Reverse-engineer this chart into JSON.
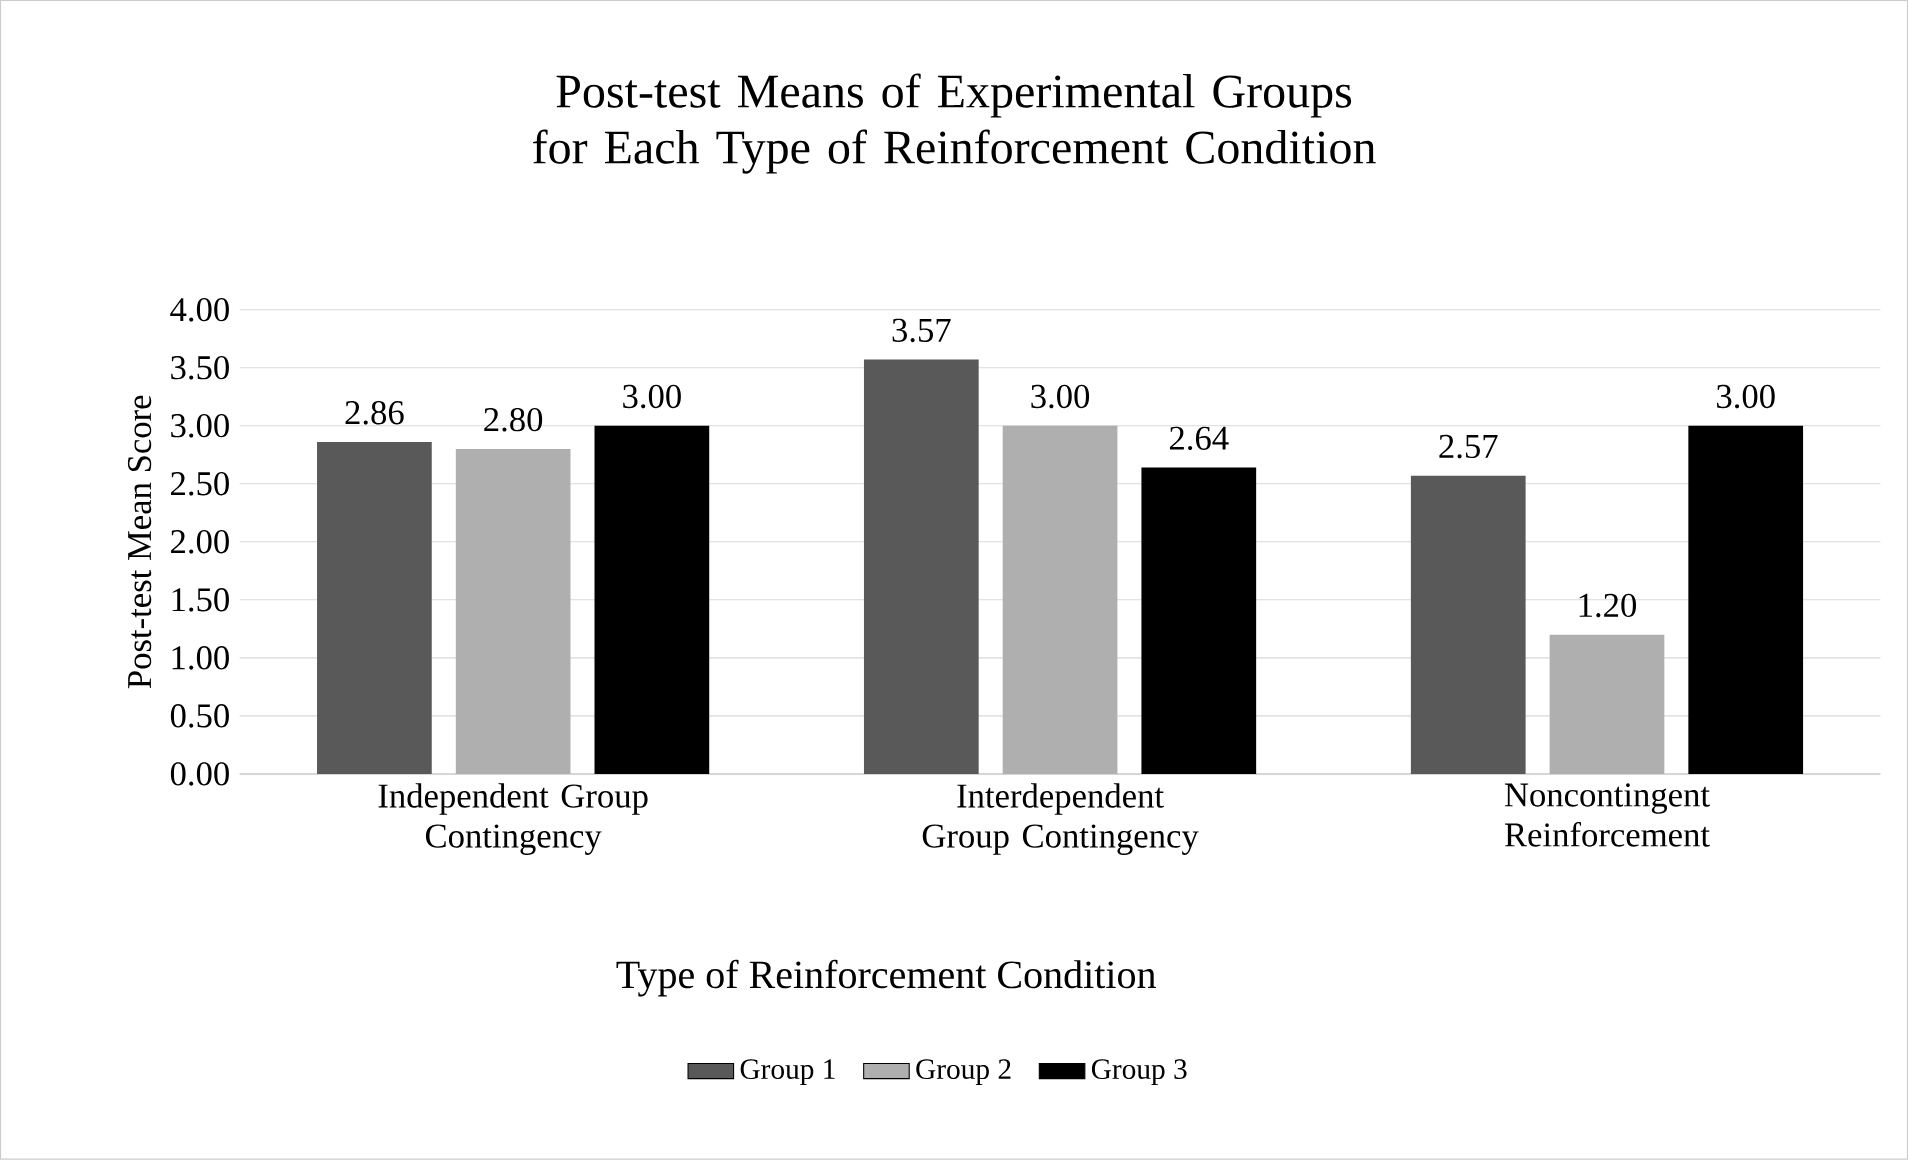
{
  "chart_data": {
    "type": "bar",
    "title": "Post-test Means of Experimental Groups for Each Type of Reinforcement Condition",
    "xlabel": "Type of Reinforcement Condition",
    "ylabel": "Post-test Mean Score",
    "categories": [
      "Independent Group Contingency",
      "Interdependent Group Contingency",
      "Noncontingent Reinforcement"
    ],
    "series": [
      {
        "name": "Group 1",
        "color": "#595959",
        "values": [
          2.86,
          3.57,
          2.57
        ],
        "value_labels": [
          "2.86",
          "3.57",
          "2.57"
        ]
      },
      {
        "name": "Group 2",
        "color": "#afafaf",
        "values": [
          2.8,
          3.0,
          1.2
        ],
        "value_labels": [
          "2.80",
          "3.00",
          "1.20"
        ]
      },
      {
        "name": "Group 3",
        "color": "#000000",
        "values": [
          3.0,
          2.64,
          3.0
        ],
        "value_labels": [
          "3.00",
          "2.64",
          "3.00"
        ]
      }
    ],
    "ylim": [
      0,
      4
    ],
    "yticks": [
      {
        "value": 0,
        "label": "0.00"
      },
      {
        "value": 0.5,
        "label": "0.50"
      },
      {
        "value": 1,
        "label": "1.00"
      },
      {
        "value": 1.5,
        "label": "1.50"
      },
      {
        "value": 2,
        "label": "2.00"
      },
      {
        "value": 2.5,
        "label": "2.50"
      },
      {
        "value": 3,
        "label": "3.00"
      },
      {
        "value": 3.5,
        "label": "3.50"
      },
      {
        "value": 4,
        "label": "4.00"
      }
    ],
    "grid": "y",
    "legend": "bottom"
  }
}
